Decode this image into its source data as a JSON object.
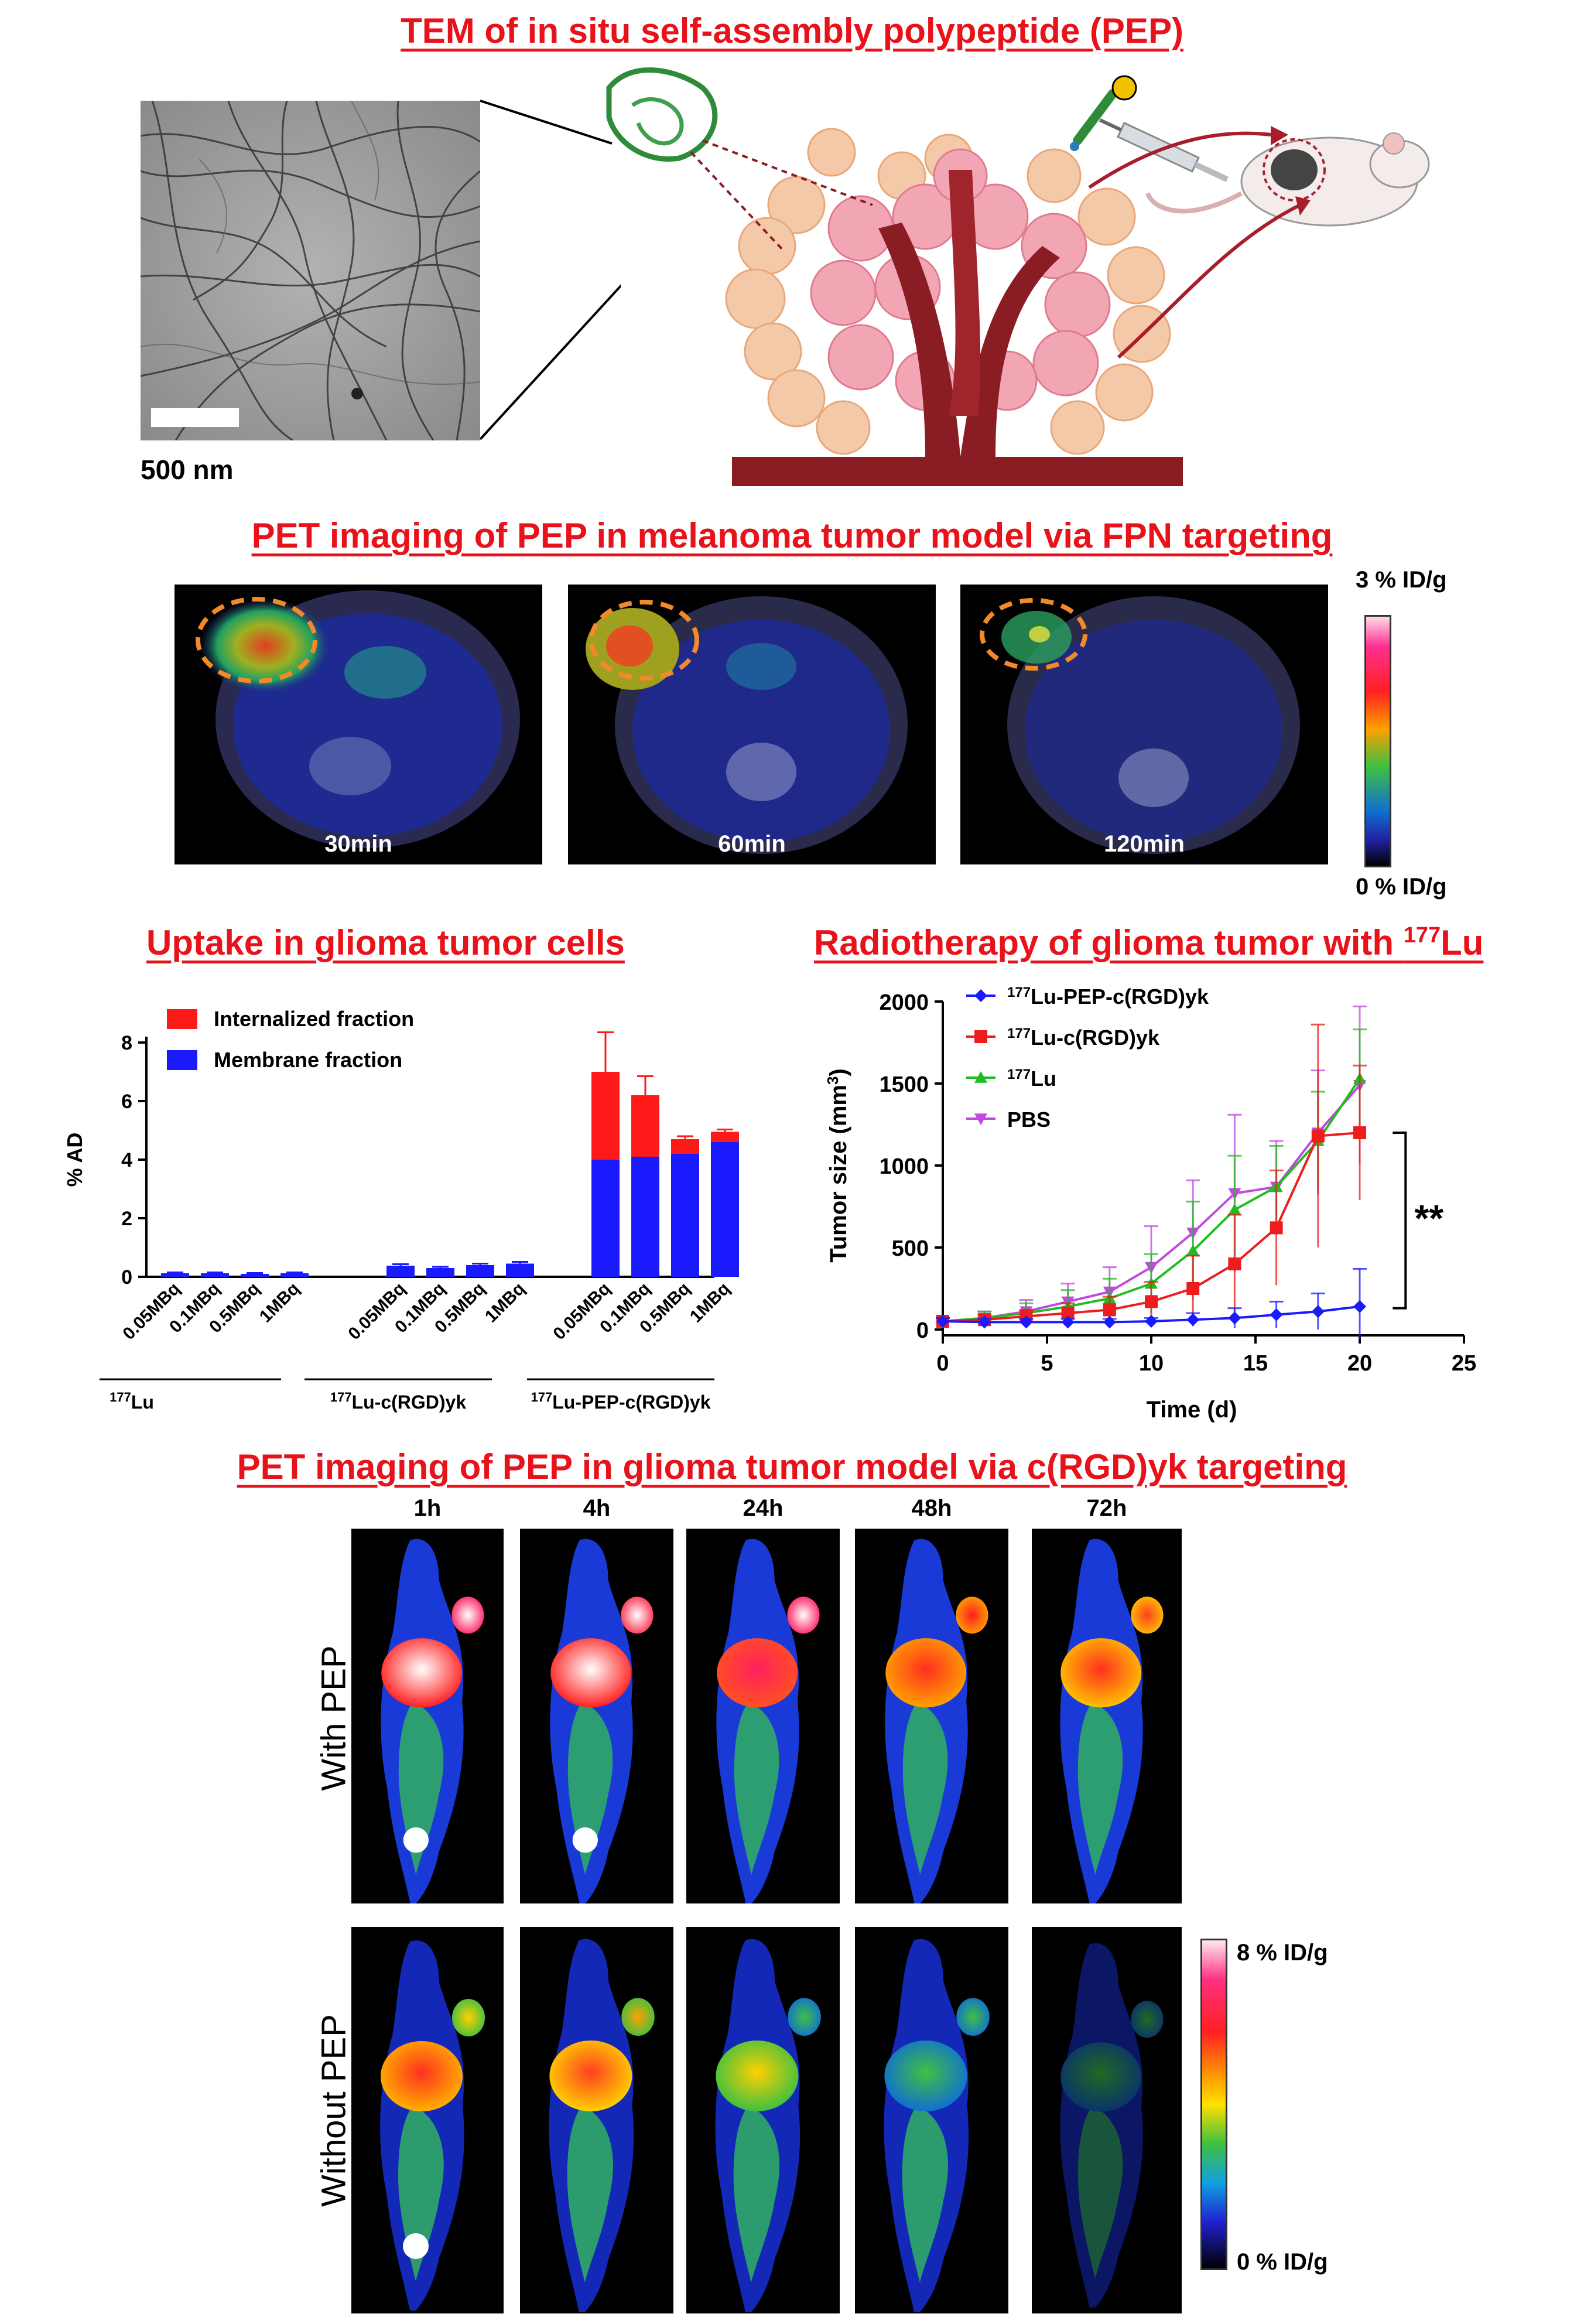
{
  "section1": {
    "title": "TEM of in situ self-assembly polypeptide (PEP)",
    "scale_bar_label": "500 nm"
  },
  "section2": {
    "title": "PET imaging of PEP in melanoma tumor model via FPN targeting",
    "panels": [
      "30min",
      "60min",
      "120min"
    ],
    "colorbar_max": "3 % ID/g",
    "colorbar_min": "0 % ID/g"
  },
  "section3": {
    "title": "Uptake in glioma tumor cells",
    "chart_data": {
      "type": "bar",
      "ylabel": "% AD",
      "ylim": [
        0,
        8
      ],
      "yticks": [
        "0",
        "2",
        "4",
        "6",
        "8"
      ],
      "categories": [
        "0.05MBq",
        "0.1MBq",
        "0.5MBq",
        "1MBq",
        "0.05MBq",
        "0.1MBq",
        "0.5MBq",
        "1MBq",
        "0.05MBq",
        "0.1MBq",
        "0.5MBq",
        "1MBq"
      ],
      "groups": [
        {
          "sup": "177",
          "label": "Lu"
        },
        {
          "sup": "177",
          "label": "Lu-c(RGD)yk"
        },
        {
          "sup": "177",
          "label": "Lu-PEP-c(RGD)yk"
        }
      ],
      "series": [
        {
          "name": "Membrane fraction",
          "color": "#1a1aff",
          "values": [
            0.12,
            0.12,
            0.1,
            0.12,
            0.38,
            0.3,
            0.4,
            0.45,
            4.0,
            4.1,
            4.2,
            4.6
          ]
        },
        {
          "name": "Internalized fraction",
          "color": "#ff1a1a",
          "values": [
            0.0,
            0.0,
            0.0,
            0.0,
            0.0,
            0.0,
            0.0,
            0.0,
            3.0,
            2.1,
            0.5,
            0.35
          ]
        }
      ],
      "errors": [
        0.03,
        0.03,
        0.03,
        0.03,
        0.05,
        0.04,
        0.05,
        0.06,
        1.35,
        0.65,
        0.1,
        0.08
      ]
    }
  },
  "section4": {
    "title_main": "Radiotherapy of glioma tumor with ",
    "title_sup": "177",
    "title_end": "Lu",
    "chart_data": {
      "type": "line",
      "xlabel": "Time (d)",
      "ylabel_main": "Tumor size (mm",
      "ylabel_sup": "3",
      "ylabel_end": ")",
      "xlim": [
        0,
        25
      ],
      "ylim": [
        0,
        2000
      ],
      "xticks": [
        "0",
        "5",
        "10",
        "15",
        "20",
        "25"
      ],
      "yticks": [
        "0",
        "500",
        "1000",
        "1500",
        "2000"
      ],
      "x": [
        0,
        2,
        4,
        6,
        8,
        10,
        12,
        14,
        16,
        18,
        20
      ],
      "series": [
        {
          "sup": "177",
          "name": "Lu-PEP-c(RGD)yk",
          "color": "#1a1aff",
          "marker": "diamond",
          "values": [
            50,
            45,
            45,
            45,
            45,
            50,
            60,
            70,
            90,
            110,
            140
          ],
          "errors": [
            20,
            20,
            20,
            20,
            20,
            20,
            40,
            60,
            80,
            110,
            230
          ]
        },
        {
          "sup": "177",
          "name": "Lu-c(RGD)yk",
          "color": "#ee1c1c",
          "marker": "square",
          "values": [
            50,
            60,
            80,
            100,
            120,
            170,
            250,
            400,
            620,
            1180,
            1200
          ],
          "errors": [
            20,
            30,
            40,
            60,
            80,
            120,
            200,
            300,
            350,
            680,
            410
          ]
        },
        {
          "sup": "177",
          "name": "Lu",
          "color": "#22bb22",
          "marker": "triangle",
          "values": [
            50,
            70,
            100,
            140,
            190,
            280,
            480,
            730,
            870,
            1150,
            1530
          ],
          "errors": [
            20,
            40,
            60,
            100,
            120,
            180,
            300,
            330,
            250,
            300,
            300
          ]
        },
        {
          "sup": "",
          "name": "PBS",
          "color": "#c04ae0",
          "marker": "triangle-down",
          "values": [
            50,
            70,
            110,
            170,
            230,
            380,
            590,
            830,
            870,
            1200,
            1490
          ],
          "errors": [
            20,
            40,
            70,
            110,
            150,
            250,
            320,
            480,
            280,
            380,
            480
          ]
        }
      ],
      "annotation": "**"
    }
  },
  "section5": {
    "title": "PET imaging of PEP in glioma tumor model via c(RGD)yk targeting",
    "timepoints": [
      "1h",
      "4h",
      "24h",
      "48h",
      "72h"
    ],
    "rows": [
      "With PEP",
      "Without PEP"
    ],
    "colorbar_max": "8 % ID/g",
    "colorbar_min": "0 % ID/g"
  },
  "colors": {
    "title_red": "#e8121a",
    "bar_red": "#ff1a1a",
    "bar_blue": "#1a1aff"
  }
}
